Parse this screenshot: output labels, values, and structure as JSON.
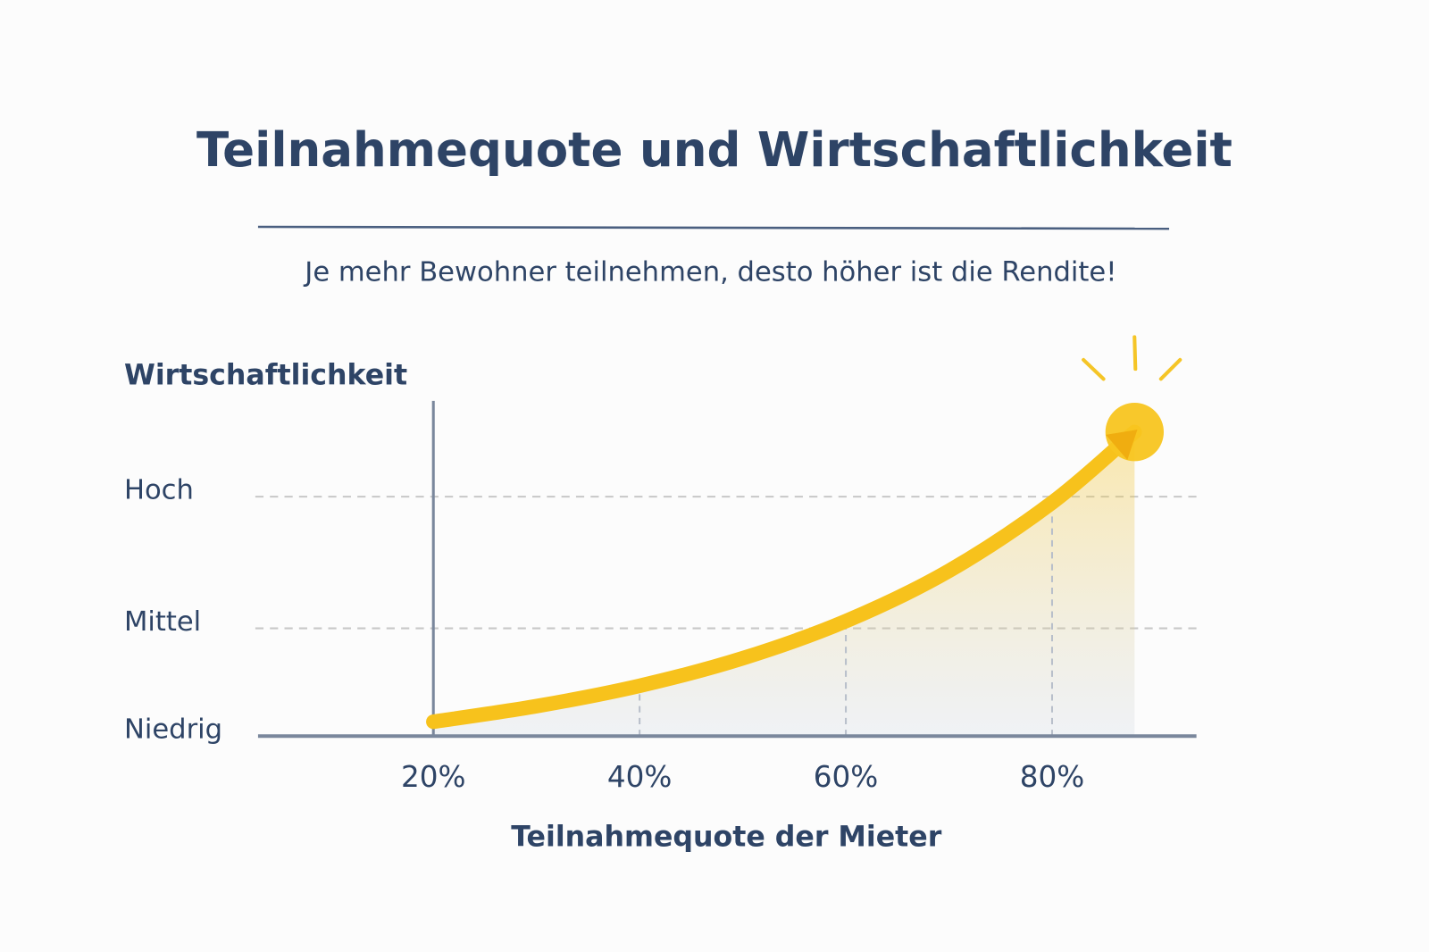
{
  "chart_data": {
    "type": "line",
    "title": "Teilnahmequote und Wirtschaftlichkeit",
    "subtitle": "Je mehr Bewohner teilnehmen, desto höher ist die Rendite!",
    "y_label": "Wirtschaftlichkeit",
    "x_label": "Teilnahmequote der Mieter",
    "x": [
      20,
      30,
      40,
      50,
      60,
      70,
      80,
      88
    ],
    "values": [
      0.12,
      0.25,
      0.42,
      0.65,
      0.96,
      1.38,
      1.95,
      2.54
    ],
    "color": "#f7c21c",
    "xlim": [
      3,
      94
    ],
    "xticks": [
      {
        "value": 20,
        "label": "20%"
      },
      {
        "value": 40,
        "label": "40%"
      },
      {
        "value": 60,
        "label": "60%"
      },
      {
        "value": 80,
        "label": "80%"
      }
    ],
    "ylim": [
      0,
      2.8
    ],
    "yticks": [
      {
        "value": 0,
        "label": "Niedrig"
      },
      {
        "value": 0.9,
        "label": "Mittel"
      },
      {
        "value": 2,
        "label": "Hoch"
      }
    ],
    "grid": true
  }
}
